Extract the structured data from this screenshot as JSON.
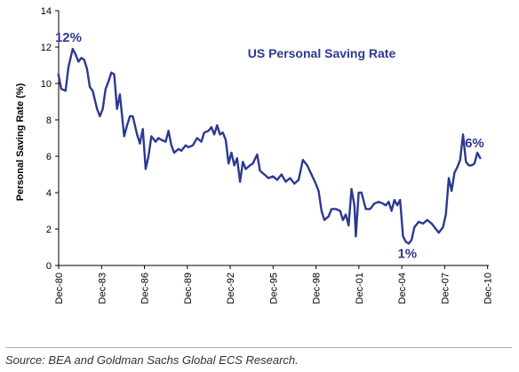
{
  "chart_data": {
    "type": "line",
    "title": "US Personal Saving Rate",
    "ylabel": "Personal Saving Rate (%)",
    "xlabel": "",
    "ylim": [
      0,
      14
    ],
    "yticks": [
      "0",
      "2",
      "4",
      "6",
      "8",
      "10",
      "12",
      "14"
    ],
    "xlim": [
      1980.917,
      2011.0
    ],
    "xtick_labels": [
      "Dec-80",
      "Dec-83",
      "Dec-86",
      "Dec-89",
      "Dec-92",
      "Dec-95",
      "Dec-98",
      "Dec-01",
      "Dec-04",
      "Dec-07",
      "Dec-10"
    ],
    "xtick_values": [
      1980.917,
      1983.917,
      1986.917,
      1989.917,
      1992.917,
      1995.917,
      1998.917,
      2001.917,
      2004.917,
      2007.917,
      2010.917
    ],
    "grid": false,
    "legend": "none",
    "line_color": "#2b3990",
    "title_color": "#2b3990",
    "annotations": [
      {
        "text": "12%",
        "x": 1981.6,
        "y": 11.9
      },
      {
        "text": "1%",
        "x": 2005.3,
        "y": 1.2
      },
      {
        "text": "6%",
        "x": 2010.0,
        "y": 6.0
      }
    ],
    "series": [
      {
        "values": [
          [
            1980.9,
            10.5
          ],
          [
            1981.1,
            9.7
          ],
          [
            1981.4,
            9.6
          ],
          [
            1981.6,
            10.9
          ],
          [
            1981.9,
            11.9
          ],
          [
            1982.1,
            11.6
          ],
          [
            1982.3,
            11.2
          ],
          [
            1982.5,
            11.4
          ],
          [
            1982.7,
            11.3
          ],
          [
            1982.9,
            10.8
          ],
          [
            1983.1,
            9.8
          ],
          [
            1983.3,
            9.6
          ],
          [
            1983.6,
            8.6
          ],
          [
            1983.8,
            8.2
          ],
          [
            1984.0,
            8.6
          ],
          [
            1984.2,
            9.7
          ],
          [
            1984.4,
            10.1
          ],
          [
            1984.6,
            10.6
          ],
          [
            1984.8,
            10.5
          ],
          [
            1985.0,
            8.6
          ],
          [
            1985.2,
            9.4
          ],
          [
            1985.5,
            7.1
          ],
          [
            1985.7,
            7.7
          ],
          [
            1985.9,
            8.2
          ],
          [
            1986.1,
            8.2
          ],
          [
            1986.4,
            7.2
          ],
          [
            1986.6,
            6.7
          ],
          [
            1986.8,
            7.5
          ],
          [
            1987.0,
            5.3
          ],
          [
            1987.2,
            6.0
          ],
          [
            1987.4,
            7.1
          ],
          [
            1987.7,
            6.8
          ],
          [
            1987.9,
            7.0
          ],
          [
            1988.1,
            6.9
          ],
          [
            1988.4,
            6.8
          ],
          [
            1988.6,
            7.4
          ],
          [
            1988.8,
            6.6
          ],
          [
            1989.0,
            6.2
          ],
          [
            1989.3,
            6.4
          ],
          [
            1989.5,
            6.3
          ],
          [
            1989.8,
            6.6
          ],
          [
            1990.0,
            6.5
          ],
          [
            1990.3,
            6.6
          ],
          [
            1990.6,
            7.0
          ],
          [
            1990.9,
            6.8
          ],
          [
            1991.1,
            7.3
          ],
          [
            1991.4,
            7.4
          ],
          [
            1991.6,
            7.6
          ],
          [
            1991.8,
            7.2
          ],
          [
            1992.0,
            7.7
          ],
          [
            1992.2,
            7.2
          ],
          [
            1992.4,
            7.3
          ],
          [
            1992.6,
            6.9
          ],
          [
            1992.8,
            5.6
          ],
          [
            1993.0,
            6.2
          ],
          [
            1993.2,
            5.5
          ],
          [
            1993.4,
            5.9
          ],
          [
            1993.6,
            4.6
          ],
          [
            1993.8,
            5.7
          ],
          [
            1994.0,
            5.3
          ],
          [
            1994.3,
            5.5
          ],
          [
            1994.5,
            5.6
          ],
          [
            1994.8,
            6.1
          ],
          [
            1995.0,
            5.2
          ],
          [
            1995.3,
            5.0
          ],
          [
            1995.6,
            4.8
          ],
          [
            1995.9,
            4.9
          ],
          [
            1996.2,
            4.7
          ],
          [
            1996.5,
            5.0
          ],
          [
            1996.8,
            4.6
          ],
          [
            1997.1,
            4.8
          ],
          [
            1997.4,
            4.5
          ],
          [
            1997.7,
            4.7
          ],
          [
            1998.0,
            5.8
          ],
          [
            1998.3,
            5.5
          ],
          [
            1998.6,
            5.0
          ],
          [
            1998.9,
            4.5
          ],
          [
            1999.1,
            4.1
          ],
          [
            1999.3,
            3.0
          ],
          [
            1999.5,
            2.5
          ],
          [
            1999.8,
            2.7
          ],
          [
            2000.0,
            3.1
          ],
          [
            2000.3,
            3.1
          ],
          [
            2000.6,
            3.0
          ],
          [
            2000.8,
            2.5
          ],
          [
            2001.0,
            2.8
          ],
          [
            2001.2,
            2.2
          ],
          [
            2001.4,
            4.2
          ],
          [
            2001.6,
            3.3
          ],
          [
            2001.7,
            1.6
          ],
          [
            2001.9,
            4.0
          ],
          [
            2002.1,
            4.0
          ],
          [
            2002.4,
            3.1
          ],
          [
            2002.7,
            3.1
          ],
          [
            2003.0,
            3.4
          ],
          [
            2003.3,
            3.5
          ],
          [
            2003.6,
            3.4
          ],
          [
            2003.8,
            3.3
          ],
          [
            2004.0,
            3.5
          ],
          [
            2004.2,
            3.0
          ],
          [
            2004.4,
            3.6
          ],
          [
            2004.6,
            3.3
          ],
          [
            2004.8,
            3.6
          ],
          [
            2005.0,
            1.6
          ],
          [
            2005.2,
            1.3
          ],
          [
            2005.4,
            1.2
          ],
          [
            2005.6,
            1.4
          ],
          [
            2005.8,
            2.1
          ],
          [
            2006.1,
            2.4
          ],
          [
            2006.4,
            2.3
          ],
          [
            2006.7,
            2.5
          ],
          [
            2007.0,
            2.3
          ],
          [
            2007.2,
            2.1
          ],
          [
            2007.5,
            1.8
          ],
          [
            2007.8,
            2.1
          ],
          [
            2008.0,
            2.8
          ],
          [
            2008.2,
            4.8
          ],
          [
            2008.4,
            4.1
          ],
          [
            2008.6,
            5.1
          ],
          [
            2008.8,
            5.4
          ],
          [
            2009.0,
            5.8
          ],
          [
            2009.2,
            7.2
          ],
          [
            2009.4,
            5.7
          ],
          [
            2009.6,
            5.5
          ],
          [
            2009.8,
            5.5
          ],
          [
            2010.0,
            5.6
          ],
          [
            2010.2,
            6.2
          ],
          [
            2010.4,
            5.9
          ]
        ]
      }
    ]
  },
  "source": "Source: BEA and Goldman Sachs Global ECS Research."
}
